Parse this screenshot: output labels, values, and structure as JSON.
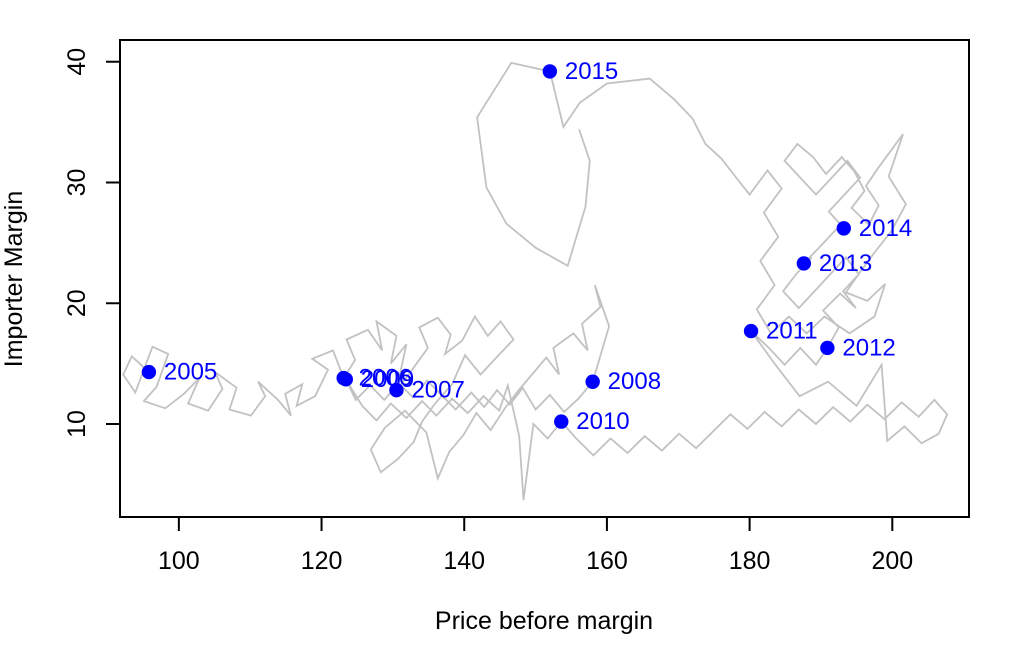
{
  "chart_data": {
    "type": "scatter",
    "title": "",
    "xlabel": "Price before margin",
    "ylabel": "Importer Margin",
    "xlim": [
      91.75,
      210.75
    ],
    "ylim": [
      2.3,
      41.8
    ],
    "x_ticks": [
      100,
      120,
      140,
      160,
      180,
      200
    ],
    "y_ticks": [
      10,
      20,
      30,
      40
    ],
    "grid": false,
    "legend": "none",
    "colors": {
      "point": "#0000ff",
      "year_label": "#0000ff",
      "trajectory": "#c2c2c2",
      "axis": "#000000",
      "background": "#ffffff"
    },
    "years": [
      {
        "label": "2005",
        "x": 95.8,
        "y": 14.3
      },
      {
        "label": "2006",
        "x": 123.1,
        "y": 13.8
      },
      {
        "label": "2007",
        "x": 130.5,
        "y": 12.8
      },
      {
        "label": "2008",
        "x": 158.0,
        "y": 13.5
      },
      {
        "label": "2009",
        "x": 123.4,
        "y": 13.7
      },
      {
        "label": "2010",
        "x": 153.6,
        "y": 10.2
      },
      {
        "label": "2011",
        "x": 180.2,
        "y": 17.7
      },
      {
        "label": "2012",
        "x": 190.9,
        "y": 16.3
      },
      {
        "label": "2013",
        "x": 187.6,
        "y": 23.3
      },
      {
        "label": "2014",
        "x": 193.2,
        "y": 26.2
      },
      {
        "label": "2015",
        "x": 152.0,
        "y": 39.2
      }
    ],
    "trajectory": [
      [
        95.8,
        14.3
      ],
      [
        93.4,
        15.6
      ],
      [
        92.2,
        14.1
      ],
      [
        93.9,
        12.6
      ],
      [
        96.3,
        16.4
      ],
      [
        98.5,
        15.8
      ],
      [
        96.9,
        13.1
      ],
      [
        95.1,
        11.9
      ],
      [
        98.1,
        11.3
      ],
      [
        100.7,
        12.5
      ],
      [
        102.9,
        13.8
      ],
      [
        101.3,
        11.7
      ],
      [
        104.1,
        11.1
      ],
      [
        106.1,
        12.9
      ],
      [
        105.1,
        14.3
      ],
      [
        108.1,
        13.0
      ],
      [
        107.1,
        11.2
      ],
      [
        110.1,
        10.7
      ],
      [
        112.1,
        12.3
      ],
      [
        111.1,
        13.5
      ],
      [
        113.9,
        12.0
      ],
      [
        115.7,
        10.7
      ],
      [
        114.9,
        12.5
      ],
      [
        117.3,
        13.3
      ],
      [
        116.5,
        11.5
      ],
      [
        119.1,
        12.3
      ],
      [
        120.9,
        14.5
      ],
      [
        118.7,
        15.4
      ],
      [
        121.6,
        16.1
      ],
      [
        123.1,
        13.8
      ],
      [
        124.7,
        15.3
      ],
      [
        123.5,
        17.0
      ],
      [
        126.5,
        17.8
      ],
      [
        128.5,
        16.1
      ],
      [
        127.7,
        18.5
      ],
      [
        130.5,
        17.3
      ],
      [
        129.7,
        15.0
      ],
      [
        131.9,
        16.6
      ],
      [
        130.5,
        12.8
      ],
      [
        132.7,
        14.5
      ],
      [
        134.9,
        16.3
      ],
      [
        133.7,
        18.0
      ],
      [
        136.3,
        18.8
      ],
      [
        138.1,
        17.4
      ],
      [
        137.3,
        15.8
      ],
      [
        139.7,
        16.9
      ],
      [
        141.5,
        18.9
      ],
      [
        143.3,
        17.3
      ],
      [
        145.1,
        18.5
      ],
      [
        146.9,
        17.0
      ],
      [
        144.5,
        15.5
      ],
      [
        142.3,
        14.1
      ],
      [
        140.1,
        15.7
      ],
      [
        138.3,
        13.3
      ],
      [
        135.9,
        11.7
      ],
      [
        134.1,
        10.2
      ],
      [
        132.9,
        8.5
      ],
      [
        130.7,
        7.1
      ],
      [
        128.3,
        6.0
      ],
      [
        126.9,
        7.9
      ],
      [
        128.9,
        9.7
      ],
      [
        131.7,
        11.1
      ],
      [
        134.7,
        9.3
      ],
      [
        136.3,
        5.5
      ],
      [
        137.9,
        7.7
      ],
      [
        139.9,
        9.1
      ],
      [
        141.7,
        10.9
      ],
      [
        143.7,
        9.5
      ],
      [
        145.7,
        11.3
      ],
      [
        147.5,
        12.7
      ],
      [
        149.5,
        14.1
      ],
      [
        151.5,
        15.5
      ],
      [
        153.3,
        14.1
      ],
      [
        152.5,
        16.3
      ],
      [
        155.3,
        17.5
      ],
      [
        157.3,
        16.1
      ],
      [
        156.5,
        18.3
      ],
      [
        159.1,
        19.7
      ],
      [
        158.3,
        21.5
      ],
      [
        160.3,
        18.1
      ],
      [
        158.0,
        13.5
      ],
      [
        156.0,
        12.1
      ],
      [
        154.0,
        11.0
      ],
      [
        152.0,
        12.4
      ],
      [
        150.0,
        11.2
      ],
      [
        148.2,
        13.0
      ],
      [
        146.4,
        11.6
      ],
      [
        144.6,
        12.8
      ],
      [
        142.8,
        11.4
      ],
      [
        141.0,
        12.6
      ],
      [
        138.8,
        11.2
      ],
      [
        136.8,
        12.4
      ],
      [
        134.8,
        13.6
      ],
      [
        132.8,
        12.2
      ],
      [
        130.8,
        13.4
      ],
      [
        128.8,
        12.0
      ],
      [
        126.8,
        13.2
      ],
      [
        124.8,
        12.0
      ],
      [
        123.4,
        13.7
      ],
      [
        125.7,
        11.5
      ],
      [
        127.7,
        10.3
      ],
      [
        129.7,
        11.7
      ],
      [
        131.9,
        10.5
      ],
      [
        134.1,
        11.9
      ],
      [
        136.1,
        10.7
      ],
      [
        138.3,
        12.1
      ],
      [
        140.5,
        10.9
      ],
      [
        142.7,
        12.3
      ],
      [
        144.9,
        11.1
      ],
      [
        146.1,
        13.2
      ],
      [
        147.7,
        9.0
      ],
      [
        148.3,
        3.7
      ],
      [
        149.7,
        10.0
      ],
      [
        151.7,
        8.8
      ],
      [
        153.6,
        10.2
      ],
      [
        155.7,
        8.8
      ],
      [
        158.1,
        7.4
      ],
      [
        160.5,
        8.8
      ],
      [
        162.9,
        7.6
      ],
      [
        165.3,
        9.0
      ],
      [
        167.7,
        7.8
      ],
      [
        170.1,
        9.2
      ],
      [
        172.5,
        8.0
      ],
      [
        174.9,
        9.4
      ],
      [
        177.3,
        10.8
      ],
      [
        179.7,
        9.6
      ],
      [
        182.1,
        11.0
      ],
      [
        184.5,
        9.8
      ],
      [
        186.9,
        11.2
      ],
      [
        189.3,
        10.0
      ],
      [
        191.7,
        11.4
      ],
      [
        194.1,
        10.2
      ],
      [
        196.5,
        11.6
      ],
      [
        198.9,
        10.4
      ],
      [
        201.3,
        11.8
      ],
      [
        203.7,
        10.6
      ],
      [
        205.9,
        12.0
      ],
      [
        207.7,
        10.8
      ],
      [
        206.5,
        9.2
      ],
      [
        204.1,
        8.4
      ],
      [
        201.7,
        9.8
      ],
      [
        199.3,
        8.6
      ],
      [
        198.5,
        14.9
      ],
      [
        195.0,
        11.5
      ],
      [
        191.0,
        13.5
      ],
      [
        187.0,
        12.3
      ],
      [
        183.5,
        15.0
      ],
      [
        180.2,
        17.7
      ],
      [
        182.7,
        16.3
      ],
      [
        184.9,
        14.9
      ],
      [
        187.1,
        16.3
      ],
      [
        189.3,
        14.9
      ],
      [
        190.9,
        16.3
      ],
      [
        192.5,
        18.0
      ],
      [
        190.3,
        19.4
      ],
      [
        192.7,
        20.8
      ],
      [
        194.9,
        19.6
      ],
      [
        193.1,
        21.0
      ],
      [
        195.3,
        22.4
      ],
      [
        193.5,
        23.8
      ],
      [
        191.3,
        22.4
      ],
      [
        189.1,
        21.0
      ],
      [
        186.9,
        19.6
      ],
      [
        184.7,
        21.0
      ],
      [
        186.5,
        22.4
      ],
      [
        188.7,
        23.8
      ],
      [
        187.6,
        23.3
      ],
      [
        189.9,
        24.7
      ],
      [
        192.1,
        26.1
      ],
      [
        193.2,
        26.2
      ],
      [
        191.1,
        27.6
      ],
      [
        193.3,
        29.0
      ],
      [
        195.5,
        30.4
      ],
      [
        193.7,
        31.8
      ],
      [
        191.5,
        30.4
      ],
      [
        189.3,
        29.0
      ],
      [
        187.1,
        30.4
      ],
      [
        184.9,
        31.8
      ],
      [
        186.7,
        33.2
      ],
      [
        188.9,
        32.1
      ],
      [
        190.7,
        30.7
      ],
      [
        192.9,
        32.1
      ],
      [
        194.7,
        30.9
      ],
      [
        196.1,
        29.3
      ],
      [
        194.3,
        27.9
      ],
      [
        196.7,
        26.5
      ],
      [
        198.1,
        28.1
      ],
      [
        196.3,
        29.7
      ],
      [
        197.9,
        31.1
      ],
      [
        201.5,
        34.0
      ],
      [
        199.5,
        30.5
      ],
      [
        201.9,
        28.2
      ],
      [
        199.9,
        26.0
      ],
      [
        197.5,
        24.2
      ],
      [
        195.5,
        22.6
      ],
      [
        193.5,
        20.9
      ],
      [
        196.5,
        20.2
      ],
      [
        199.0,
        21.6
      ],
      [
        197.5,
        18.9
      ],
      [
        194.0,
        17.5
      ],
      [
        190.5,
        18.9
      ],
      [
        188.0,
        17.5
      ],
      [
        185.5,
        18.9
      ],
      [
        183.0,
        17.5
      ],
      [
        181.0,
        19.5
      ],
      [
        183.5,
        21.5
      ],
      [
        181.5,
        23.5
      ],
      [
        184.0,
        25.5
      ],
      [
        182.0,
        27.5
      ],
      [
        184.5,
        29.5
      ],
      [
        182.5,
        31.0
      ],
      [
        180.0,
        29.0
      ],
      [
        178.0,
        30.5
      ],
      [
        176.0,
        32.0
      ],
      [
        173.8,
        33.2
      ],
      [
        172.0,
        35.3
      ],
      [
        169.4,
        36.9
      ],
      [
        166.0,
        38.6
      ],
      [
        160.0,
        38.2
      ],
      [
        156.2,
        36.6
      ],
      [
        153.9,
        34.6
      ],
      [
        152.0,
        39.2
      ],
      [
        146.6,
        39.9
      ],
      [
        141.8,
        35.4
      ],
      [
        143.1,
        29.6
      ],
      [
        145.9,
        26.6
      ],
      [
        150.0,
        24.6
      ],
      [
        154.5,
        23.1
      ],
      [
        157.0,
        28.0
      ],
      [
        157.6,
        31.8
      ],
      [
        156.1,
        34.4
      ]
    ]
  }
}
